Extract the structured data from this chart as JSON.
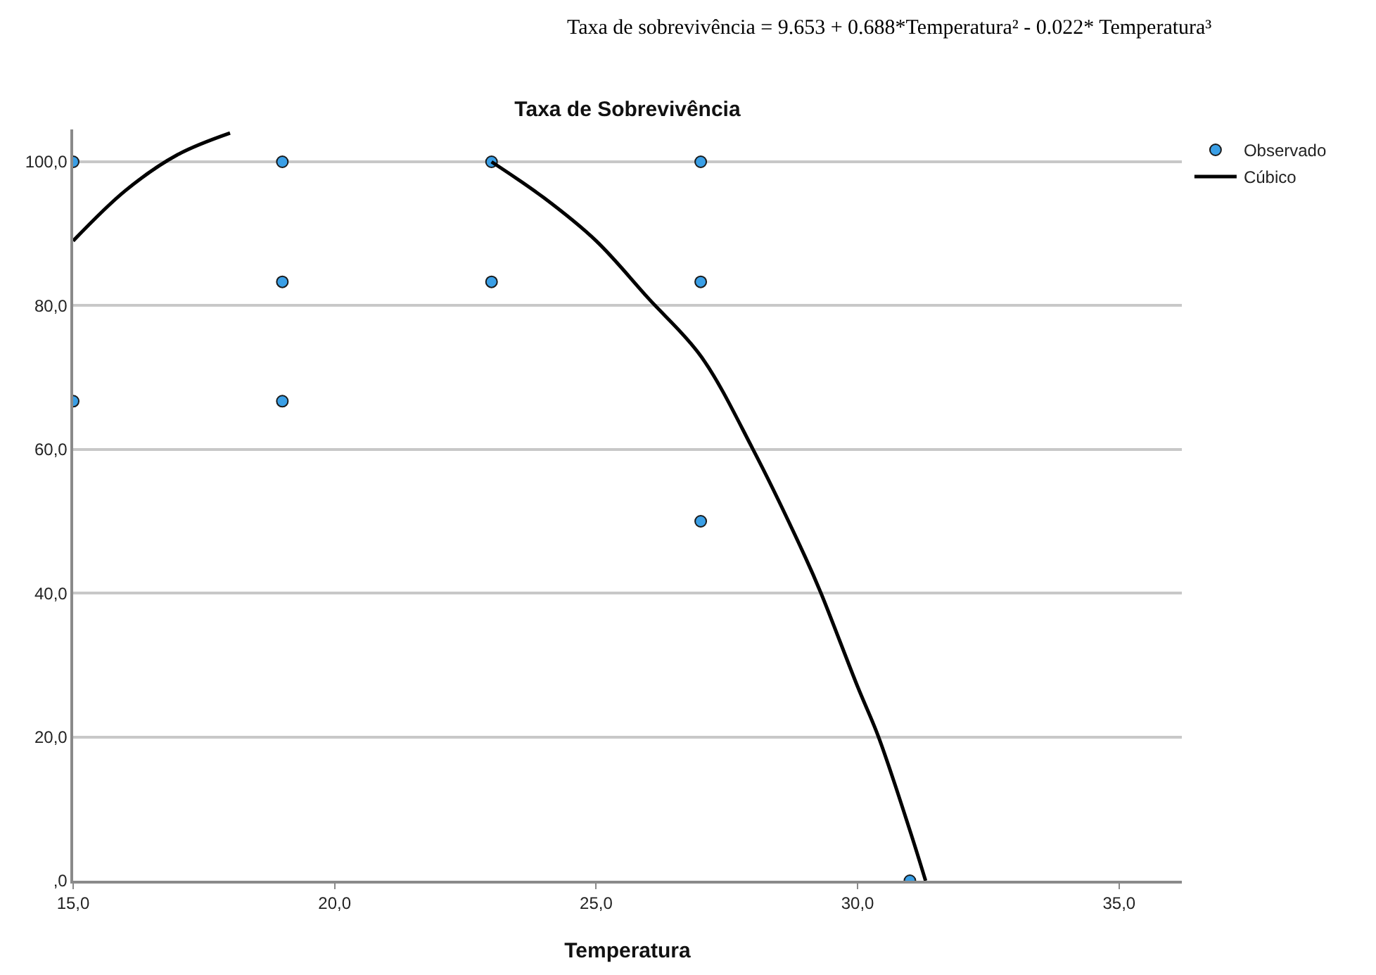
{
  "chart_data": {
    "type": "scatter",
    "title": "Taxa de Sobrevivência",
    "xlabel": "Temperatura",
    "annotations": [
      "Taxa de sobrevivência = 9.653 + 0.688*Temperatura² - 0.022* Temperatura³"
    ],
    "series": [
      {
        "name": "Observado",
        "type": "scatter",
        "color": "#3a9fe6",
        "marker": "circle",
        "x": [
          15,
          15,
          19,
          19,
          19,
          23,
          23,
          27,
          27,
          27,
          31
        ],
        "values": [
          100,
          66.7,
          100,
          83.3,
          66.7,
          100,
          83.3,
          100,
          83.3,
          50,
          0
        ]
      },
      {
        "name": "Cúbico",
        "type": "line",
        "color": "#000000",
        "line_style": "solid",
        "x": [
          15,
          16,
          17,
          18,
          18.6,
          20,
          22.3,
          23,
          24,
          25,
          26,
          27,
          28,
          29,
          29.3,
          30,
          30.4,
          31,
          31.3
        ],
        "values": [
          89,
          96,
          101,
          104,
          null,
          null,
          null,
          100,
          95,
          89,
          81,
          73,
          60,
          45,
          40,
          27,
          20,
          7,
          0
        ]
      }
    ],
    "xlim": [
      15,
      36.2
    ],
    "ylim": [
      0,
      104.5
    ],
    "xticks": [
      {
        "value": 15,
        "label": "15,0"
      },
      {
        "value": 20,
        "label": "20,0"
      },
      {
        "value": 25,
        "label": "25,0"
      },
      {
        "value": 30,
        "label": "30,0"
      },
      {
        "value": 35,
        "label": "35,0"
      }
    ],
    "yticks": [
      {
        "value": 0,
        "label": ",0"
      },
      {
        "value": 20,
        "label": "20,0"
      },
      {
        "value": 40,
        "label": "40,0"
      },
      {
        "value": 60,
        "label": "60,0"
      },
      {
        "value": 80,
        "label": "80,0"
      },
      {
        "value": 100,
        "label": "100,0"
      }
    ],
    "grid": "y",
    "legend": "top right"
  }
}
